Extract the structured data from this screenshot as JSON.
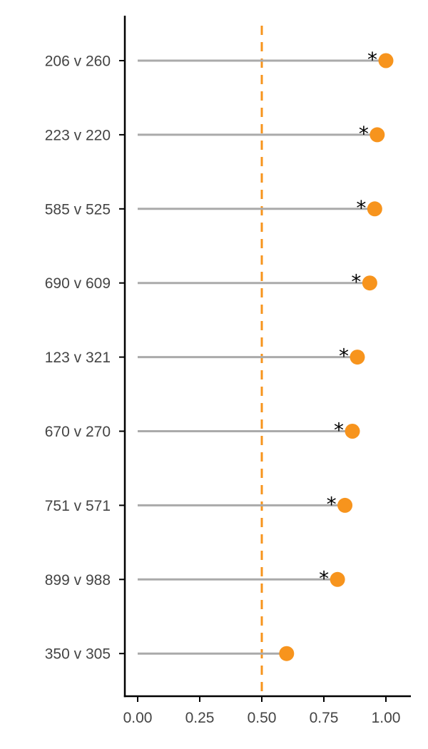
{
  "chart_data": {
    "type": "lollipop",
    "orientation": "horizontal",
    "categories": [
      "206 v 260",
      "223 v 220",
      "585 v 525",
      "690 v 609",
      "123 v 321",
      "670 v 270",
      "751 v 571",
      "899 v 988",
      "350 v 305"
    ],
    "values": [
      1.0,
      0.965,
      0.955,
      0.935,
      0.885,
      0.865,
      0.835,
      0.805,
      0.6
    ],
    "significant": [
      true,
      true,
      true,
      true,
      true,
      true,
      true,
      true,
      false
    ],
    "significance_marker": "*",
    "reference_line": 0.5,
    "xlim": [
      -0.05,
      1.1
    ],
    "xticks": [
      0.0,
      0.25,
      0.5,
      0.75,
      1.0
    ],
    "xtick_labels": [
      "0.00",
      "0.25",
      "0.50",
      "0.75",
      "1.00"
    ],
    "title": "",
    "xlabel": "",
    "ylabel": "",
    "grid": false,
    "legend": "none",
    "colors": {
      "point": "#F7941D",
      "stem": "#AAAAAA",
      "reference": "#F7941D",
      "axis": "#000000",
      "tick_text": "#444444"
    }
  }
}
